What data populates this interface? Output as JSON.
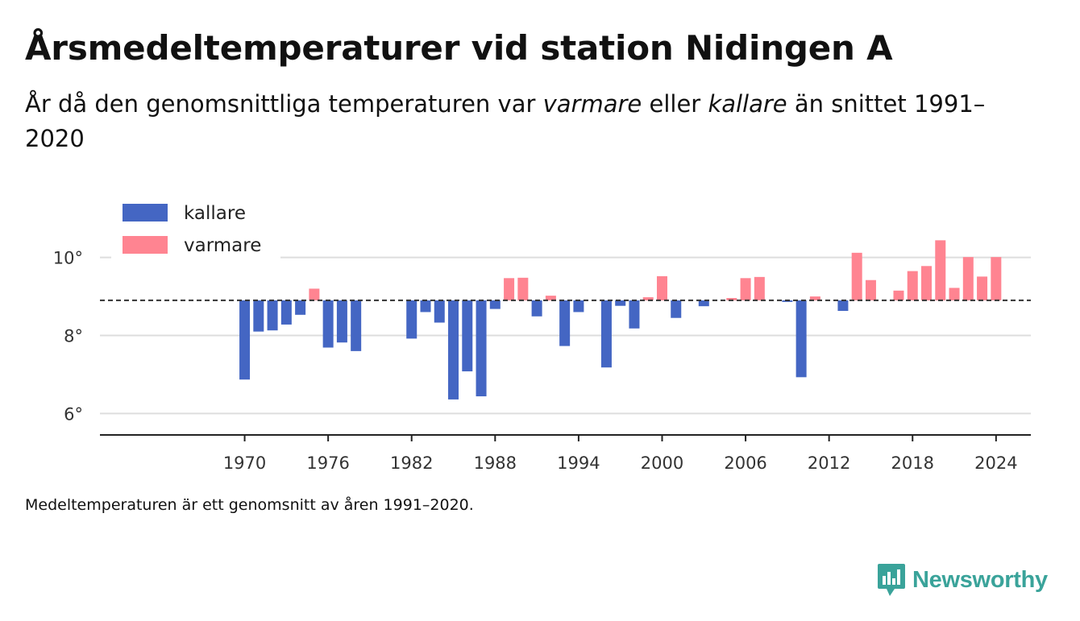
{
  "header": {
    "title": "Årsmedeltemperaturer vid station Nidingen A",
    "subtitle_part1": "År då den genomsnittliga temperaturen var ",
    "subtitle_em1": "varmare",
    "subtitle_part2": " eller ",
    "subtitle_em2": "kallare",
    "subtitle_part3": " än snittet 1991–2020"
  },
  "footnote": "Medeltemperaturen är ett genomsnitt av åren 1991–2020.",
  "brand": {
    "name": "Newsworthy",
    "icon": "newsworthy-logo-icon"
  },
  "colors": {
    "cold": "#4466c3",
    "warm": "#ff8491",
    "grid": "#dddddd",
    "axis": "#222222",
    "brand": "#3aa39a"
  },
  "chart_data": {
    "type": "bar",
    "title": "",
    "xlabel": "",
    "ylabel": "",
    "baseline": 8.9,
    "ylim": [
      5.45,
      11.5
    ],
    "yticks": [
      6,
      8,
      10
    ],
    "ytick_labels": [
      "6°",
      "8°",
      "10°"
    ],
    "xlim": [
      1959.6,
      2026.5
    ],
    "xticks": [
      1970,
      1976,
      1982,
      1988,
      1994,
      2000,
      2006,
      2012,
      2018,
      2024
    ],
    "xtick_labels": [
      "1970",
      "1976",
      "1982",
      "1988",
      "1994",
      "2000",
      "2006",
      "2012",
      "2018",
      "2024"
    ],
    "grid": "horizontal",
    "legend_position": "top-left",
    "legend": [
      {
        "name": "kallare",
        "color": "#4466c3"
      },
      {
        "name": "varmare",
        "color": "#ff8491"
      }
    ],
    "series": [
      {
        "name": "Årsmedeltemperatur",
        "x": [
          1970,
          1971,
          1972,
          1973,
          1974,
          1975,
          1976,
          1977,
          1978,
          1982,
          1983,
          1984,
          1985,
          1986,
          1987,
          1988,
          1989,
          1990,
          1991,
          1992,
          1993,
          1994,
          1996,
          1997,
          1998,
          1999,
          2000,
          2001,
          2003,
          2005,
          2006,
          2007,
          2009,
          2010,
          2011,
          2013,
          2014,
          2015,
          2017,
          2018,
          2019,
          2020,
          2021,
          2022,
          2023,
          2024
        ],
        "values": [
          6.87,
          8.1,
          8.13,
          8.28,
          8.53,
          9.2,
          7.69,
          7.82,
          7.6,
          7.92,
          8.6,
          8.33,
          6.36,
          7.08,
          6.44,
          8.68,
          9.47,
          9.48,
          8.49,
          9.02,
          7.73,
          8.6,
          7.18,
          8.76,
          8.18,
          8.98,
          9.52,
          8.45,
          8.75,
          8.96,
          9.47,
          9.5,
          8.86,
          6.93,
          9.0,
          8.63,
          10.12,
          9.42,
          9.15,
          9.65,
          9.78,
          10.44,
          9.22,
          10.01,
          9.51,
          10.01
        ]
      }
    ]
  }
}
